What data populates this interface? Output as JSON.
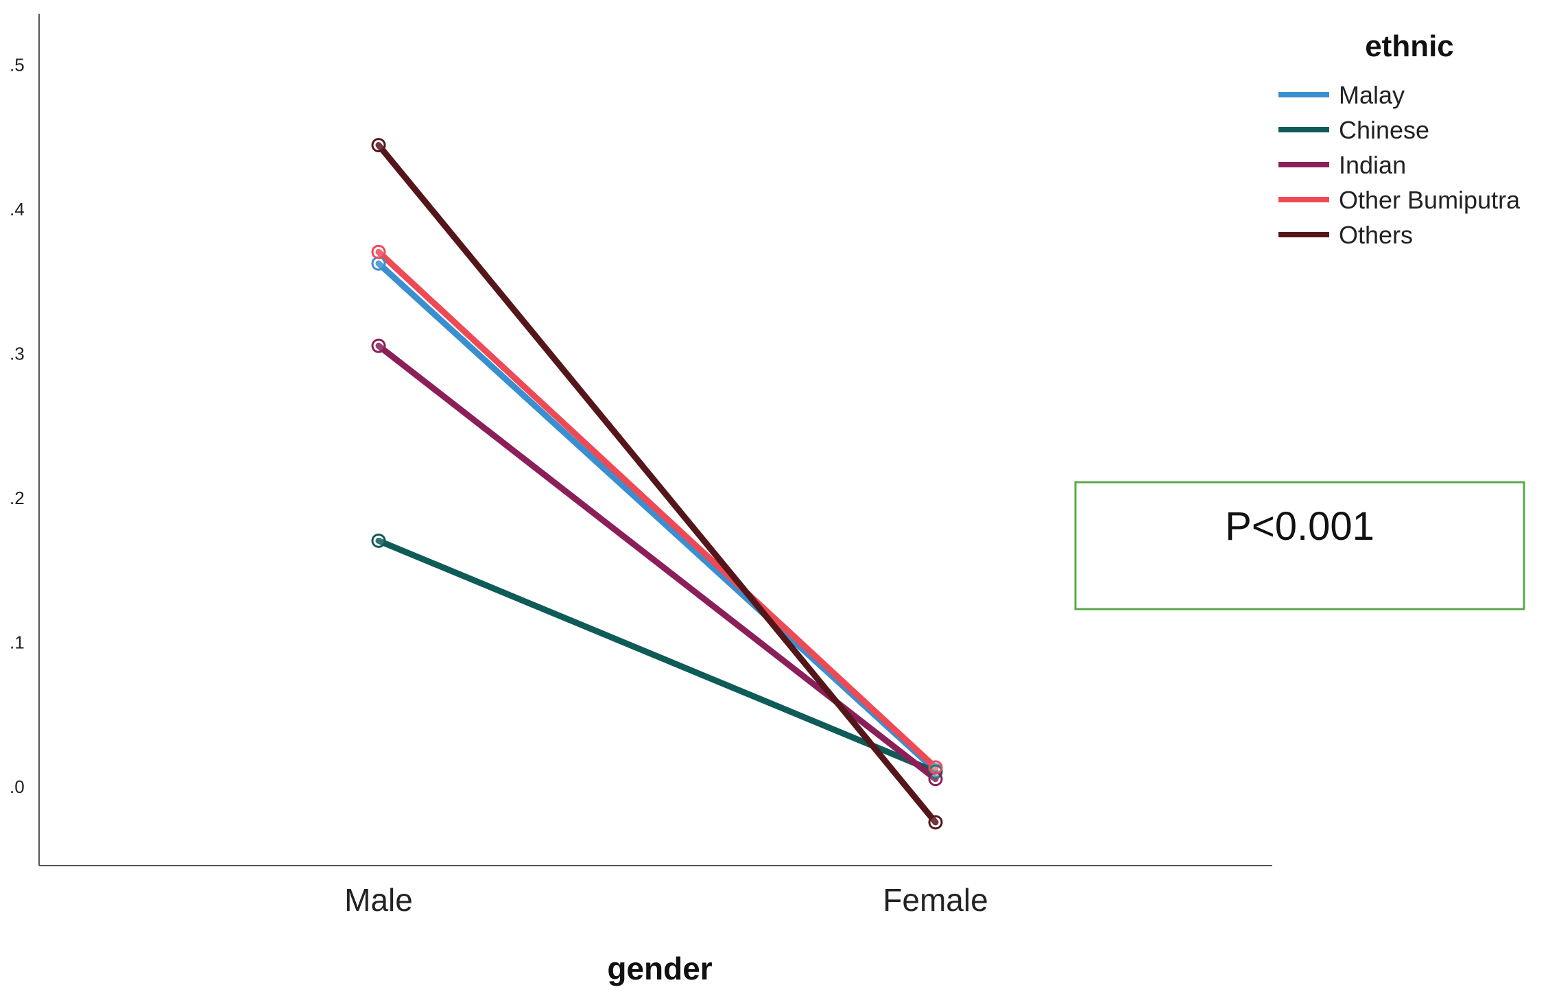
{
  "chart_data": {
    "type": "line",
    "title": "",
    "xlabel": "gender",
    "ylabel": "",
    "categories": [
      "Male",
      "Female"
    ],
    "ylim": [
      -0.055,
      0.535
    ],
    "yticks": [
      0.0,
      0.1,
      0.2,
      0.3,
      0.4,
      0.5
    ],
    "ytick_labels": [
      ".0",
      ".1",
      ".2",
      ".3",
      ".4",
      ".5"
    ],
    "grid": false,
    "legend": {
      "title": "ethnic",
      "position": "top-right"
    },
    "series": [
      {
        "name": "Malay",
        "color": "#3A8FD0",
        "values": [
          0.362,
          0.011
        ]
      },
      {
        "name": "Chinese",
        "color": "#0F5B57",
        "values": [
          0.17,
          0.01
        ]
      },
      {
        "name": "Indian",
        "color": "#8B1F5A",
        "values": [
          0.305,
          0.005
        ]
      },
      {
        "name": "Other Bumiputra",
        "color": "#EE4A56",
        "values": [
          0.37,
          0.013
        ]
      },
      {
        "name": "Others",
        "color": "#55161A",
        "values": [
          0.444,
          -0.025
        ]
      }
    ],
    "annotations": [
      {
        "text": "P<0.001",
        "border_color": "#5BA84A"
      }
    ]
  }
}
